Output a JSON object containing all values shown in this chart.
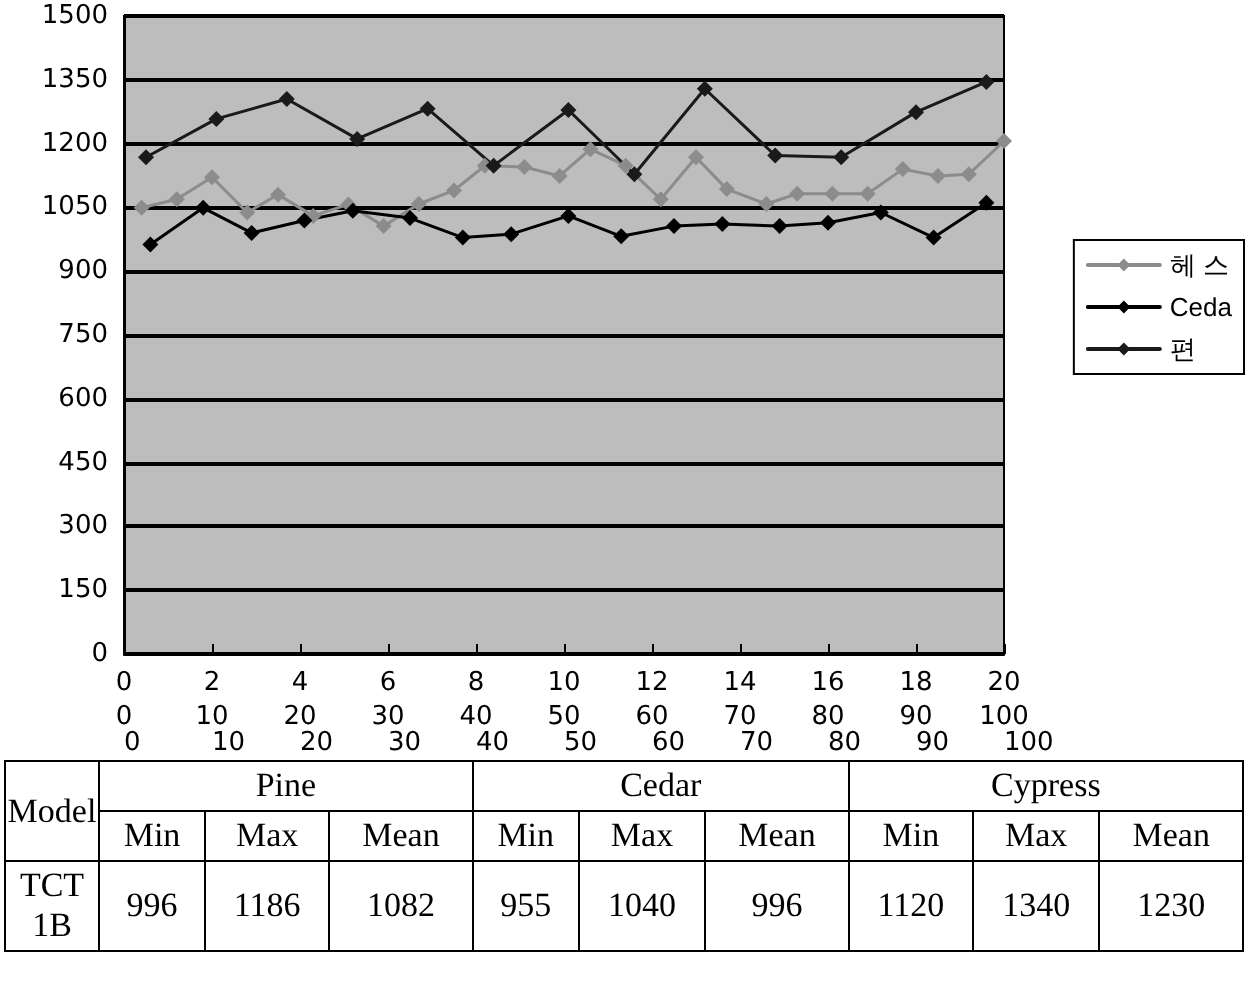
{
  "chart_data": [
    {
      "type": "line",
      "marker": "diamond",
      "grid": "y",
      "legend": "right",
      "xlim": [
        0,
        20
      ],
      "xticks": [
        0,
        2,
        4,
        6,
        8,
        10,
        12,
        14,
        16,
        18,
        20
      ],
      "x2lim": [
        0,
        100
      ],
      "x2ticks": [
        0,
        10,
        20,
        30,
        40,
        50,
        60,
        70,
        80,
        90,
        100
      ],
      "annotations": [
        "0",
        "10",
        "20",
        "30",
        "40",
        "50",
        "60",
        "70",
        "80",
        "90",
        "100"
      ],
      "ylim": [
        0,
        1500
      ],
      "yticks": [
        0,
        150,
        300,
        450,
        600,
        750,
        900,
        1050,
        1200,
        1350,
        1500
      ],
      "series": [
        {
          "name": "헤 스",
          "color": "#8c8c8c",
          "x": [
            0.4,
            1.2,
            2.0,
            2.8,
            3.5,
            4.3,
            5.1,
            5.9,
            6.7,
            7.5,
            8.2,
            9.1,
            9.9,
            10.6,
            11.4,
            12.2,
            13.0,
            13.7,
            14.6,
            15.3,
            16.1,
            16.9,
            17.7,
            18.5,
            19.2,
            20.0
          ],
          "values": [
            1049,
            1069,
            1121,
            1038,
            1080,
            1030,
            1057,
            1006,
            1058,
            1090,
            1148,
            1145,
            1124,
            1187,
            1148,
            1069,
            1168,
            1093,
            1058,
            1082,
            1082,
            1082,
            1140,
            1124,
            1128,
            1206
          ]
        },
        {
          "name": "Ceda",
          "color": "#000000",
          "x": [
            0.6,
            1.8,
            2.9,
            4.1,
            5.2,
            6.5,
            7.7,
            8.8,
            10.1,
            11.3,
            12.5,
            13.6,
            14.9,
            16.0,
            17.2,
            18.4,
            19.6
          ],
          "values": [
            963,
            1049,
            990,
            1019,
            1042,
            1025,
            979,
            987,
            1030,
            982,
            1006,
            1011,
            1006,
            1014,
            1038,
            979,
            1061
          ]
        },
        {
          "name": "편",
          "color": "#1a1a1a",
          "x": [
            0.5,
            2.1,
            3.7,
            5.3,
            6.9,
            8.4,
            10.1,
            11.6,
            13.2,
            14.8,
            16.3,
            18.0,
            19.6
          ],
          "values": [
            1168,
            1258,
            1305,
            1211,
            1282,
            1148,
            1279,
            1128,
            1329,
            1172,
            1168,
            1274,
            1345
          ]
        }
      ]
    },
    {
      "type": "other",
      "annotations": [
        "Model",
        "Pine",
        "Cedar",
        "Cypress",
        "Min",
        "Max",
        "Mean",
        "Min",
        "Max",
        "Mean",
        "Min",
        "Max",
        "Mean",
        "TCT 1B",
        "996",
        "1186",
        "1082",
        "955",
        "1040",
        "996",
        "1120",
        "1340",
        "1230"
      ]
    }
  ]
}
